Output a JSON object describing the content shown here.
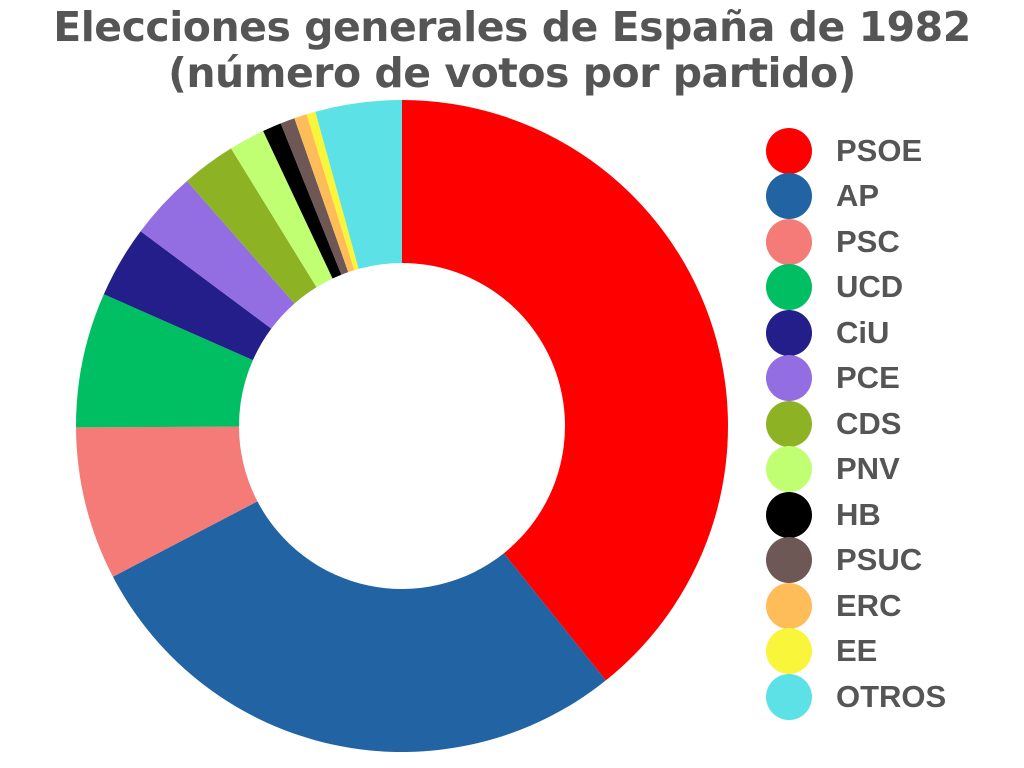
{
  "chart_data": {
    "type": "pie",
    "variant": "donut",
    "title": "Elecciones generales de España de 1982",
    "subtitle": "(número de votos por partido)",
    "categories": [
      "PSOE",
      "AP",
      "PSC",
      "UCD",
      "CiU",
      "PCE",
      "CDS",
      "PNV",
      "HB",
      "PSUC",
      "ERC",
      "EE",
      "OTROS"
    ],
    "values": [
      8.8,
      6.3,
      1.7,
      1.5,
      0.8,
      0.75,
      0.6,
      0.4,
      0.21,
      0.16,
      0.14,
      0.1,
      0.96
    ],
    "colors": [
      "#ff0000",
      "#2163a3",
      "#f47b77",
      "#00bf63",
      "#241e8a",
      "#936de2",
      "#8db325",
      "#c1ff72",
      "#000000",
      "#6e5855",
      "#ffbd59",
      "#f9f53a",
      "#5ce1e6"
    ],
    "legend_position": "right"
  }
}
